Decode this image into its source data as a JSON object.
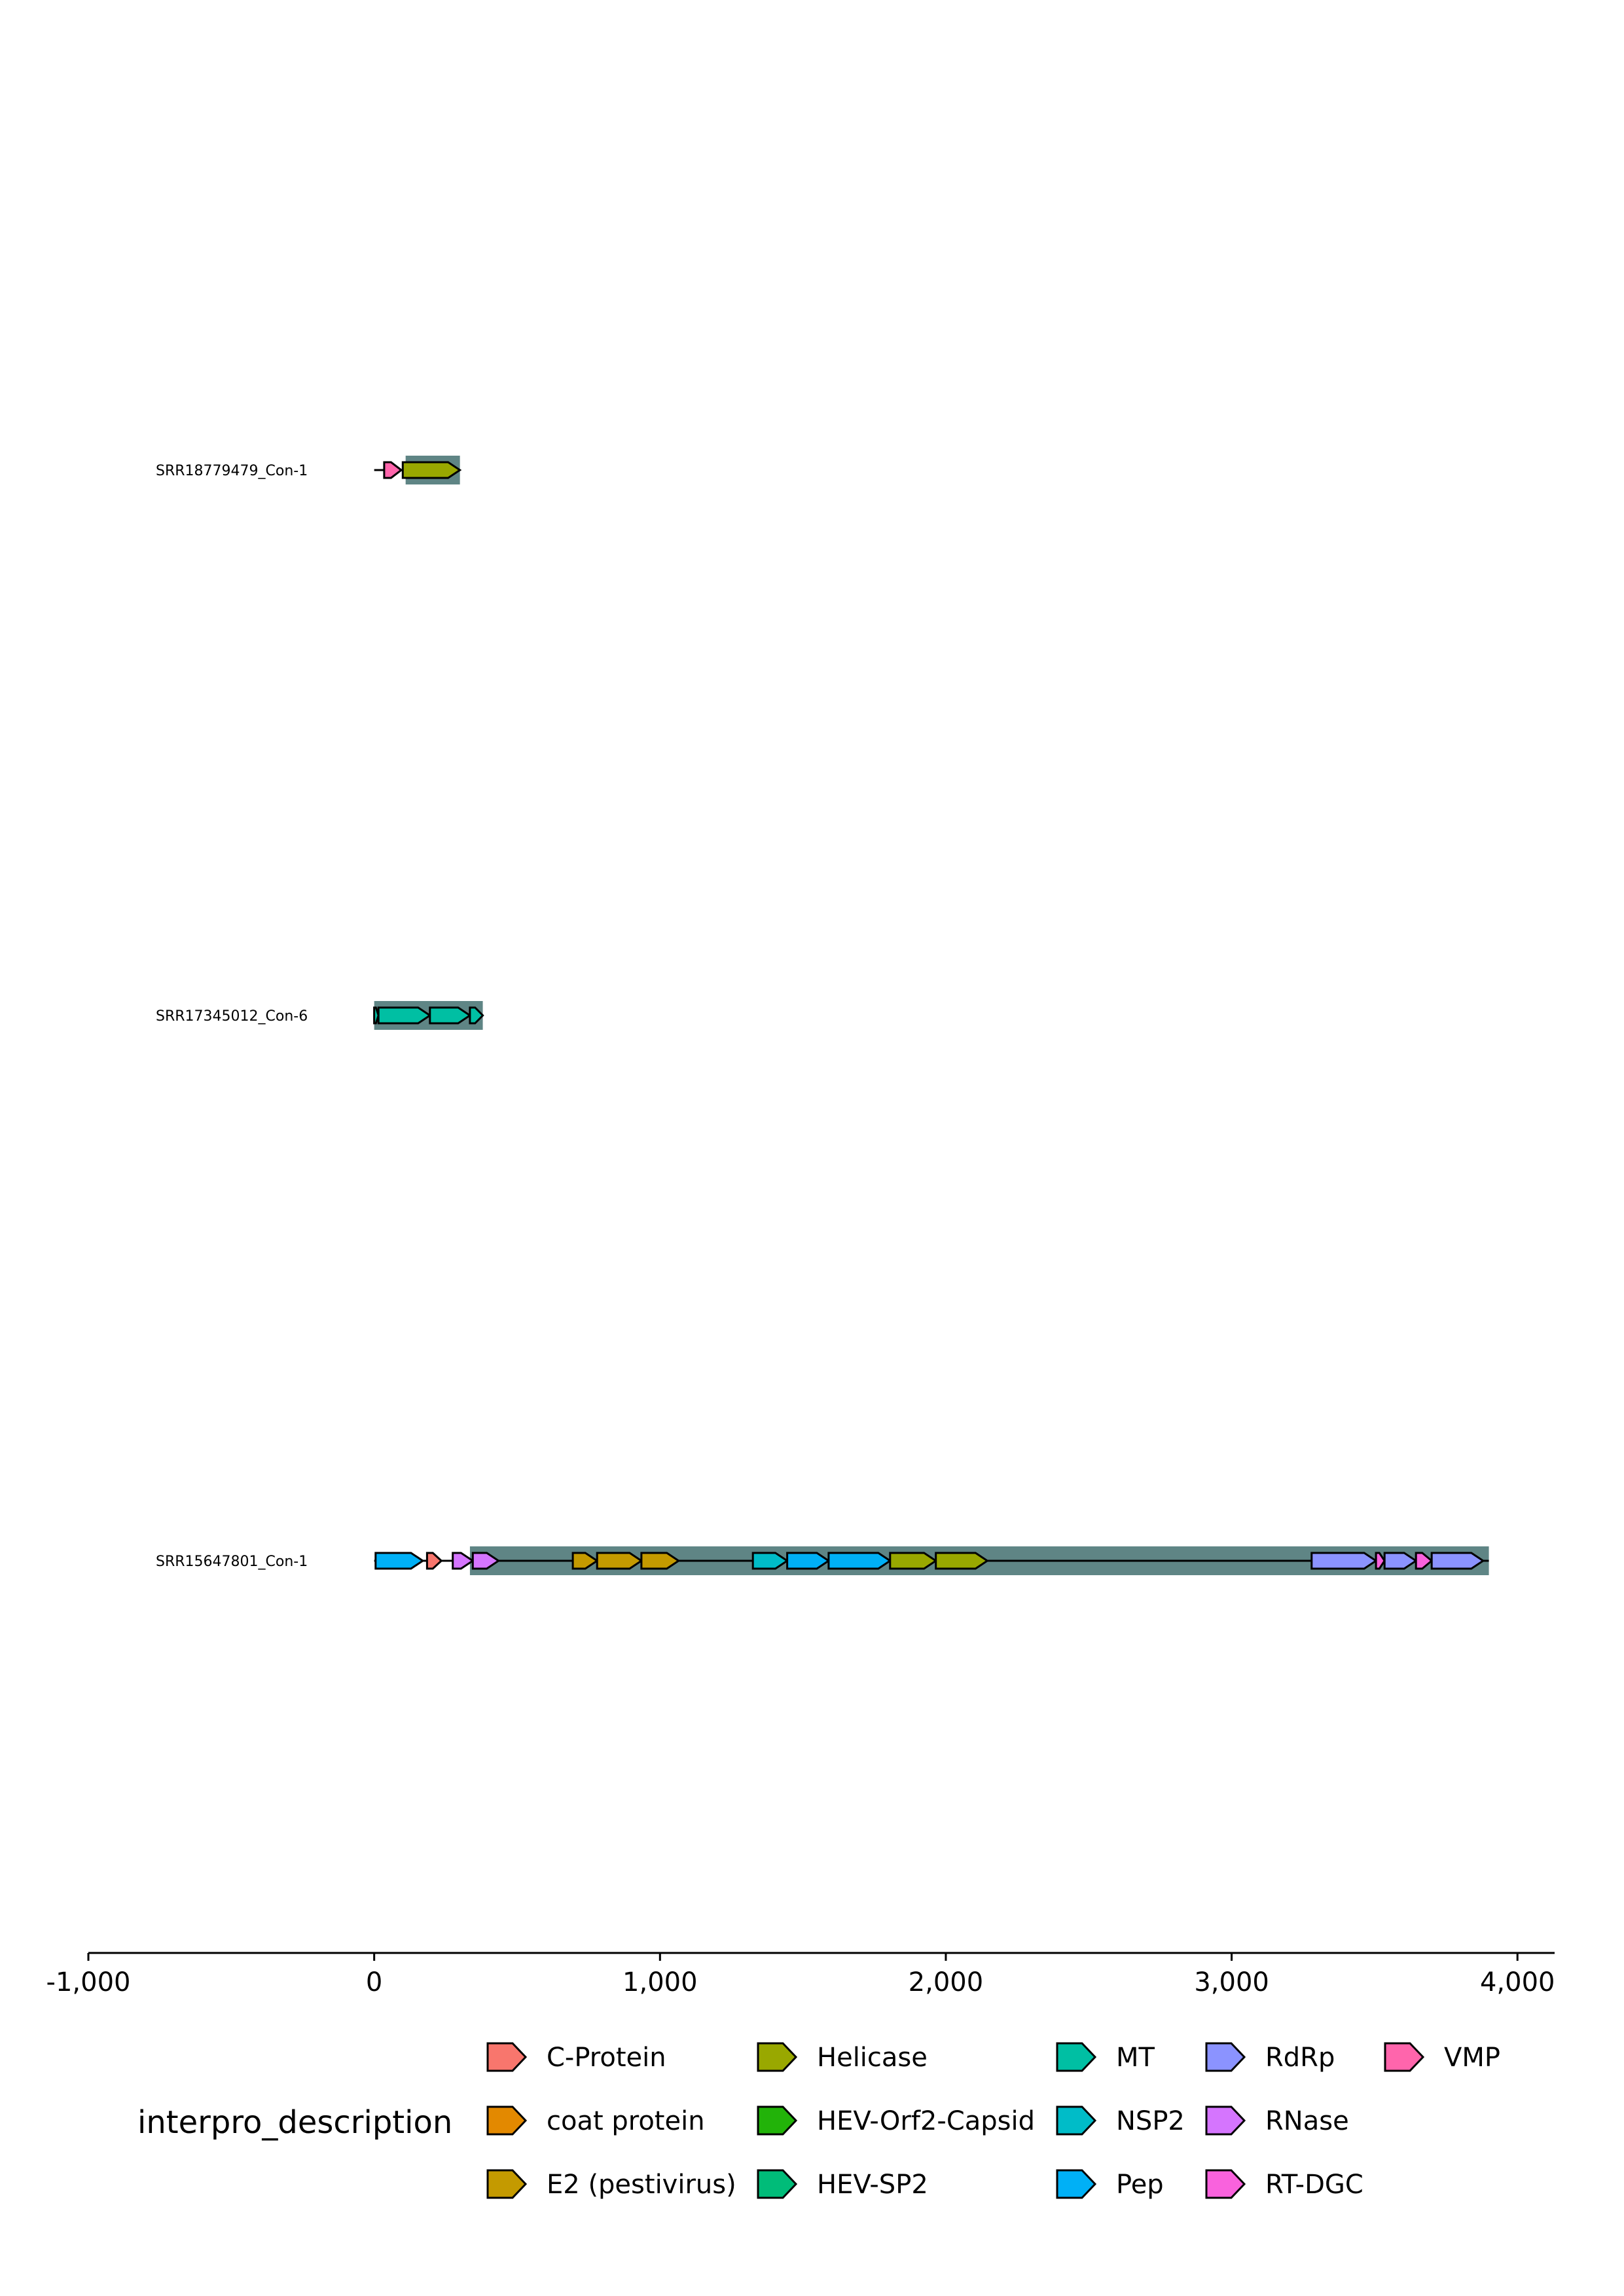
{
  "chart_data": {
    "type": "gene-arrow-map",
    "title": "",
    "xlabel": "",
    "ylabel": "",
    "xlim": [
      -1000,
      4130
    ],
    "x_ticks": [
      -1000,
      0,
      1000,
      2000,
      3000,
      4000
    ],
    "x_tick_labels": [
      "-1,000",
      "0",
      "1,000",
      "2,000",
      "3,000",
      "4,000"
    ],
    "grid": false,
    "legend_position": "bottom",
    "legend": {
      "title": "interpro_description",
      "entries": [
        {
          "label": "C-Protein",
          "color": "#F8766D"
        },
        {
          "label": "coat protein",
          "color": "#E38900"
        },
        {
          "label": "E2 (pestivirus)",
          "color": "#C49A00"
        },
        {
          "label": "Helicase",
          "color": "#99A800"
        },
        {
          "label": "HEV-Orf2-Capsid",
          "color": "#22B309"
        },
        {
          "label": "HEV-SP2",
          "color": "#00BC79"
        },
        {
          "label": "MT",
          "color": "#00BFA3"
        },
        {
          "label": "NSP2",
          "color": "#00BCC8"
        },
        {
          "label": "Pep",
          "color": "#00B0F6"
        },
        {
          "label": "RdRp",
          "color": "#8B93FF"
        },
        {
          "label": "RNase",
          "color": "#D575FE"
        },
        {
          "label": "RT-DGC",
          "color": "#F962DD"
        },
        {
          "label": "VMP",
          "color": "#FF65AC"
        }
      ]
    },
    "contigs": [
      {
        "name": "SRR18779479_Con-1",
        "line": [
          0,
          300
        ],
        "region": [
          110,
          300
        ],
        "genes": [
          {
            "start": 35,
            "end": 95,
            "domain": "VMP"
          },
          {
            "start": 100,
            "end": 300,
            "domain": "Helicase"
          }
        ]
      },
      {
        "name": "SRR17345012_Con-6",
        "line": [
          0,
          380
        ],
        "region": [
          0,
          380
        ],
        "genes": [
          {
            "start": 0,
            "end": 15,
            "domain": "MT"
          },
          {
            "start": 15,
            "end": 195,
            "domain": "MT"
          },
          {
            "start": 195,
            "end": 335,
            "domain": "MT"
          },
          {
            "start": 335,
            "end": 380,
            "domain": "MT"
          }
        ]
      },
      {
        "name": "SRR15647801_Con-1",
        "line": [
          0,
          3900
        ],
        "region": [
          335,
          3900
        ],
        "genes": [
          {
            "start": 5,
            "end": 170,
            "domain": "Pep"
          },
          {
            "start": 185,
            "end": 235,
            "domain": "C-Protein"
          },
          {
            "start": 275,
            "end": 345,
            "domain": "RNase"
          },
          {
            "start": 345,
            "end": 435,
            "domain": "RNase"
          },
          {
            "start": 695,
            "end": 780,
            "domain": "E2 (pestivirus)"
          },
          {
            "start": 780,
            "end": 935,
            "domain": "E2 (pestivirus)"
          },
          {
            "start": 935,
            "end": 1065,
            "domain": "E2 (pestivirus)"
          },
          {
            "start": 1325,
            "end": 1445,
            "domain": "NSP2"
          },
          {
            "start": 1445,
            "end": 1590,
            "domain": "Pep"
          },
          {
            "start": 1590,
            "end": 1805,
            "domain": "Pep"
          },
          {
            "start": 1805,
            "end": 1965,
            "domain": "Helicase"
          },
          {
            "start": 1965,
            "end": 2145,
            "domain": "Helicase"
          },
          {
            "start": 3280,
            "end": 3505,
            "domain": "RdRp"
          },
          {
            "start": 3505,
            "end": 3535,
            "domain": "RT-DGC"
          },
          {
            "start": 3535,
            "end": 3645,
            "domain": "RdRp"
          },
          {
            "start": 3645,
            "end": 3700,
            "domain": "RT-DGC"
          },
          {
            "start": 3700,
            "end": 3880,
            "domain": "RdRp"
          }
        ]
      }
    ]
  }
}
